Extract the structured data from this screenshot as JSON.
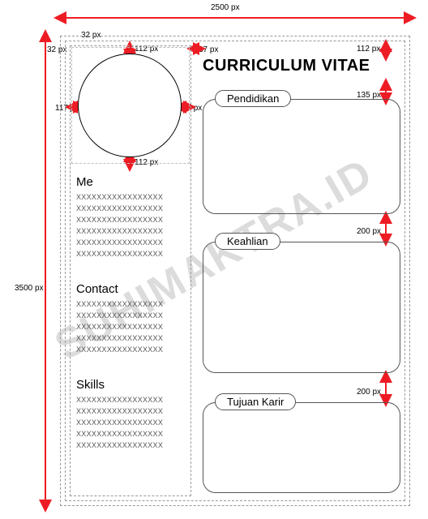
{
  "dimensions": {
    "canvas_w": "2500 px",
    "canvas_h": "3500 px",
    "margin_outer": "32 px",
    "margin_outer2": "32 px",
    "photo_pad_top": "112 px",
    "photo_pad_bottom": "112 px",
    "photo_pad_left": "117 px",
    "photo_pad_right": "117 px",
    "col_gap": "37 px",
    "title_gap_top": "112 px",
    "panel1_gap": "135 px",
    "panel2_gap": "200 px",
    "panel3_gap": "200 px"
  },
  "title": "CURRICULUM VITAE",
  "watermark": "SUHIMAKTRA.ID",
  "left": {
    "sections": [
      {
        "heading": "Me",
        "lines": 6
      },
      {
        "heading": "Contact",
        "lines": 5
      },
      {
        "heading": "Skills",
        "lines": 5
      }
    ],
    "placeholder_text": "XXXXXXXXXXXXXXXXX"
  },
  "right": {
    "panels": [
      {
        "label": "Pendidikan"
      },
      {
        "label": "Keahlian"
      },
      {
        "label": "Tujuan Karir"
      }
    ]
  },
  "colors": {
    "arrow": "#ed1c24",
    "dashed": "#999999",
    "solid": "#555555",
    "watermark": "#dcdcdc",
    "text": "#000000",
    "bg": "#ffffff"
  }
}
